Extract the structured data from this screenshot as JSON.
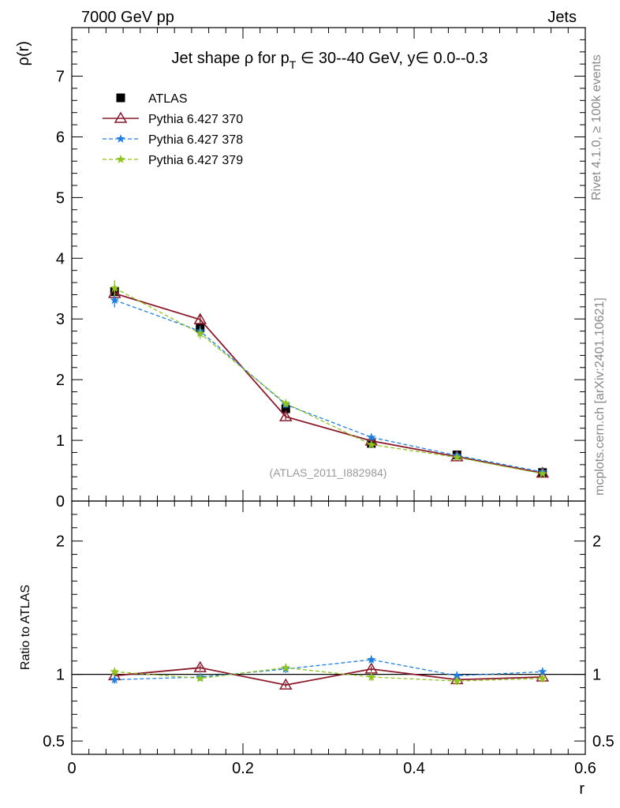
{
  "chart_data": [
    {
      "type": "line",
      "title": "Jet shape ρ for p",
      "title_sub": "T",
      "title_rest": " ∈ 30--40 GeV, y∈ 0.0--0.3",
      "ylabel": "ρ(r)",
      "ylim": [
        0,
        7.8
      ],
      "yticks": [
        0,
        1,
        2,
        3,
        4,
        5,
        6,
        7
      ],
      "xlim": [
        0,
        0.6
      ],
      "legend_position": "top-left",
      "x": [
        0.05,
        0.15,
        0.25,
        0.35,
        0.45,
        0.55
      ],
      "series": [
        {
          "name": "ATLAS",
          "color": "#000000",
          "marker": "square",
          "values": [
            3.45,
            2.86,
            1.52,
            0.95,
            0.76,
            0.47
          ],
          "errors": [
            0.07,
            0.06,
            0.04,
            0.03,
            0.02,
            0.02
          ]
        },
        {
          "name": "Pythia 6.427 370",
          "color": "#8b1a2b",
          "marker": "triangle",
          "line": "solid",
          "values": [
            3.42,
            2.99,
            1.39,
            0.99,
            0.73,
            0.46
          ],
          "errors": [
            0.08,
            0.08,
            0.05,
            0.04,
            0.03,
            0.02
          ]
        },
        {
          "name": "Pythia 6.427 378",
          "color": "#1e7fe0",
          "marker": "star",
          "line": "dashed",
          "values": [
            3.31,
            2.8,
            1.59,
            1.05,
            0.75,
            0.48
          ],
          "errors": [
            0.12,
            0.09,
            0.06,
            0.04,
            0.03,
            0.02
          ]
        },
        {
          "name": "Pythia 6.427 379",
          "color": "#8fc31f",
          "marker": "star",
          "line": "dashed",
          "values": [
            3.51,
            2.76,
            1.61,
            0.93,
            0.72,
            0.45
          ],
          "errors": [
            0.13,
            0.09,
            0.06,
            0.04,
            0.03,
            0.02
          ]
        }
      ]
    },
    {
      "type": "line",
      "ylabel": "Ratio to ATLAS",
      "xlabel": "r",
      "ylim": [
        0.4,
        2.3
      ],
      "yticks_labeled": [
        0.5,
        1,
        2
      ],
      "xticks": [
        0,
        0.2,
        0.4,
        0.6
      ],
      "xlim": [
        0,
        0.6
      ],
      "x": [
        0.05,
        0.15,
        0.25,
        0.35,
        0.45,
        0.55
      ],
      "series": [
        {
          "name": "Pythia 6.427 370",
          "color": "#8b1a2b",
          "marker": "triangle",
          "line": "solid",
          "values": [
            0.99,
            1.05,
            0.92,
            1.04,
            0.96,
            0.98
          ],
          "errors": [
            0.02,
            0.02,
            0.02,
            0.02,
            0.02,
            0.02
          ]
        },
        {
          "name": "Pythia 6.427 378",
          "color": "#1e7fe0",
          "marker": "star",
          "line": "dashed",
          "values": [
            0.96,
            0.98,
            1.04,
            1.11,
            0.99,
            1.02
          ],
          "errors": [
            0.03,
            0.02,
            0.03,
            0.03,
            0.03,
            0.03
          ]
        },
        {
          "name": "Pythia 6.427 379",
          "color": "#8fc31f",
          "marker": "star",
          "line": "dashed",
          "values": [
            1.02,
            0.97,
            1.05,
            0.98,
            0.95,
            0.97
          ],
          "errors": [
            0.03,
            0.02,
            0.03,
            0.03,
            0.03,
            0.03
          ]
        }
      ]
    }
  ],
  "header": {
    "energy_label": "7000 GeV pp",
    "category_label": "Jets"
  },
  "side": {
    "rivet_label": "Rivet 4.1.0, ≥ 100k events",
    "mcplots_label": "mcplots.cern.ch [arXiv:2401.10621]"
  },
  "analysis_label": "(ATLAS_2011_I882984)"
}
